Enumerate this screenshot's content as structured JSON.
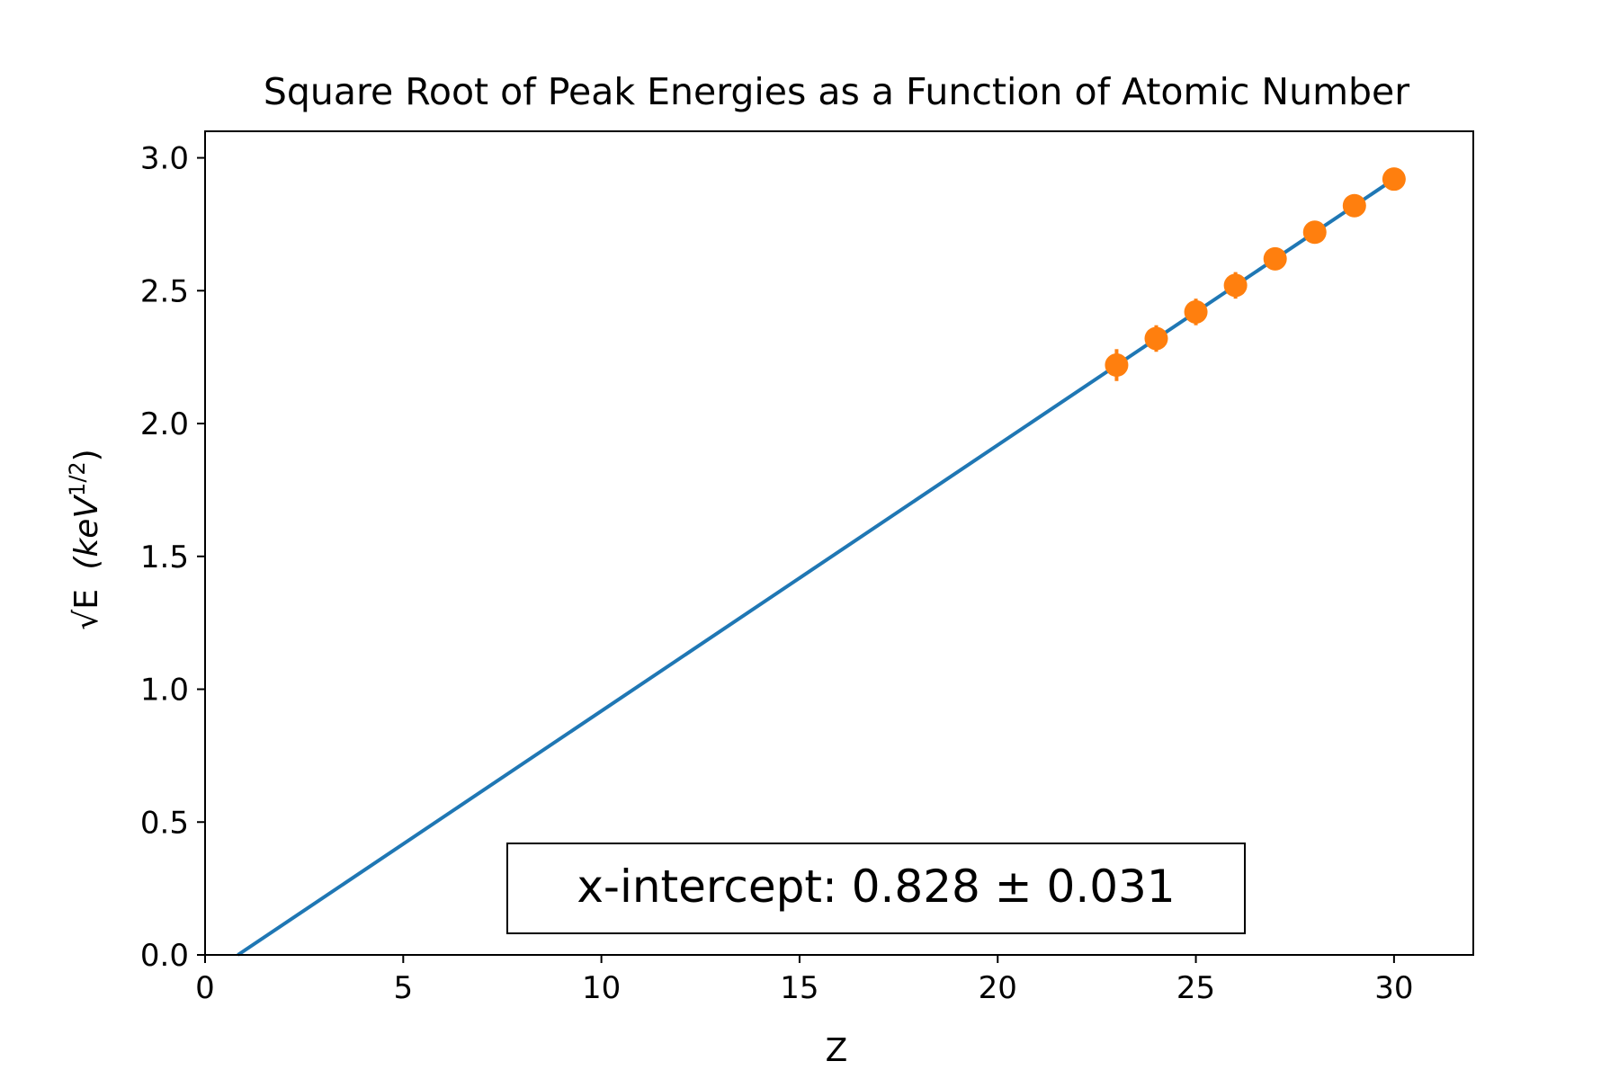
{
  "chart_data": {
    "type": "scatter",
    "title": "Square Root of Peak Energies as a Function of Atomic Number",
    "xlabel": "Z",
    "ylabel": {
      "symbol": "√E",
      "unit_open": "(keV",
      "unit_exp": "1/2",
      "unit_close": ")"
    },
    "xlim": [
      0,
      32
    ],
    "ylim": [
      0,
      3.1
    ],
    "xticks": [
      0,
      5,
      10,
      15,
      20,
      25,
      30
    ],
    "yticks": [
      "0.0",
      "0.5",
      "1.0",
      "1.5",
      "2.0",
      "2.5",
      "3.0"
    ],
    "grid": false,
    "series": [
      {
        "kind": "points",
        "color": "#ff7f0e",
        "x": [
          23,
          24,
          25,
          26,
          27,
          28,
          29,
          30
        ],
        "y": [
          2.22,
          2.32,
          2.42,
          2.52,
          2.62,
          2.72,
          2.82,
          2.92
        ],
        "yerr": [
          0.06,
          0.05,
          0.05,
          0.05,
          0.04,
          0.03,
          0.03,
          0.03
        ]
      },
      {
        "kind": "fit-line",
        "color": "#1f77b4",
        "x": [
          0.828,
          30
        ],
        "y": [
          0.0,
          2.92
        ]
      }
    ],
    "annotation": {
      "text": "x-intercept: 0.828 ± 0.031",
      "position": "bottom-center"
    }
  }
}
